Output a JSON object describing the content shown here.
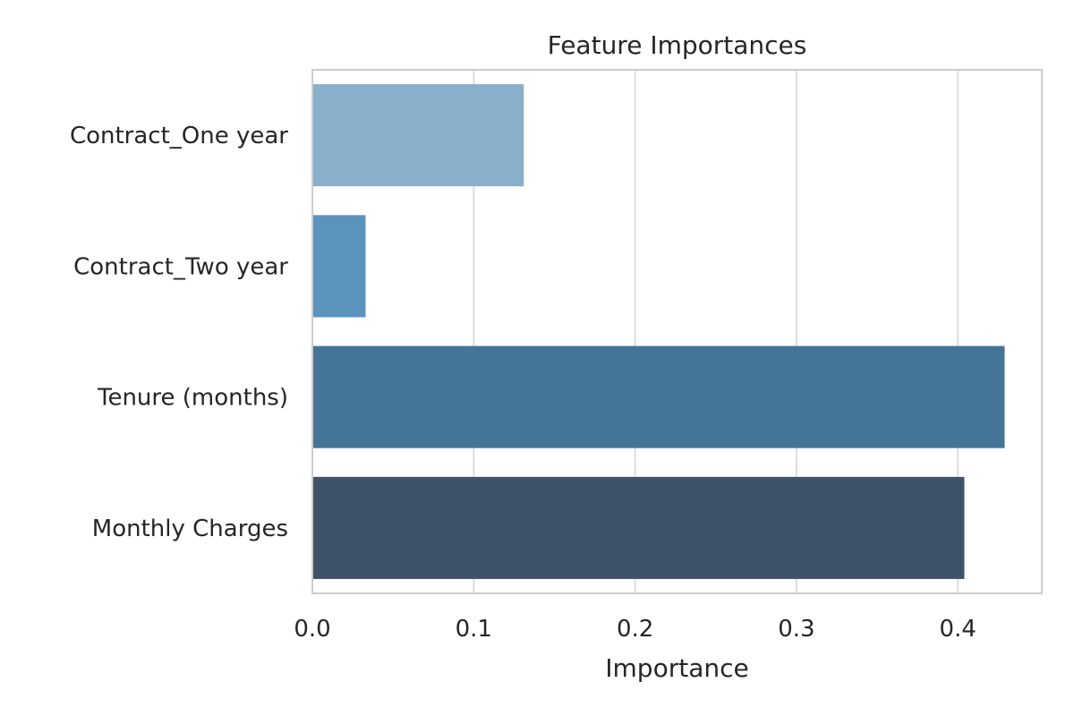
{
  "chart_data": {
    "type": "bar",
    "orientation": "horizontal",
    "title": "Feature Importances",
    "xlabel": "Importance",
    "ylabel": "",
    "categories": [
      "Contract_One year",
      "Contract_Two year",
      "Tenure (months)",
      "Monthly Charges"
    ],
    "values": [
      0.131,
      0.033,
      0.429,
      0.404
    ],
    "xlim": [
      0.0,
      0.452
    ],
    "xticks": [
      0.0,
      0.1,
      0.2,
      0.3,
      0.4
    ],
    "xtick_labels": [
      "0.0",
      "0.1",
      "0.2",
      "0.3",
      "0.4"
    ],
    "grid": true,
    "grid_axis": "x",
    "bar_colors": [
      "#89b0cb",
      "#5c93bd",
      "#457596",
      "#3e5368"
    ],
    "grid_color": "#dedede",
    "frame_color": "#cccccc"
  }
}
